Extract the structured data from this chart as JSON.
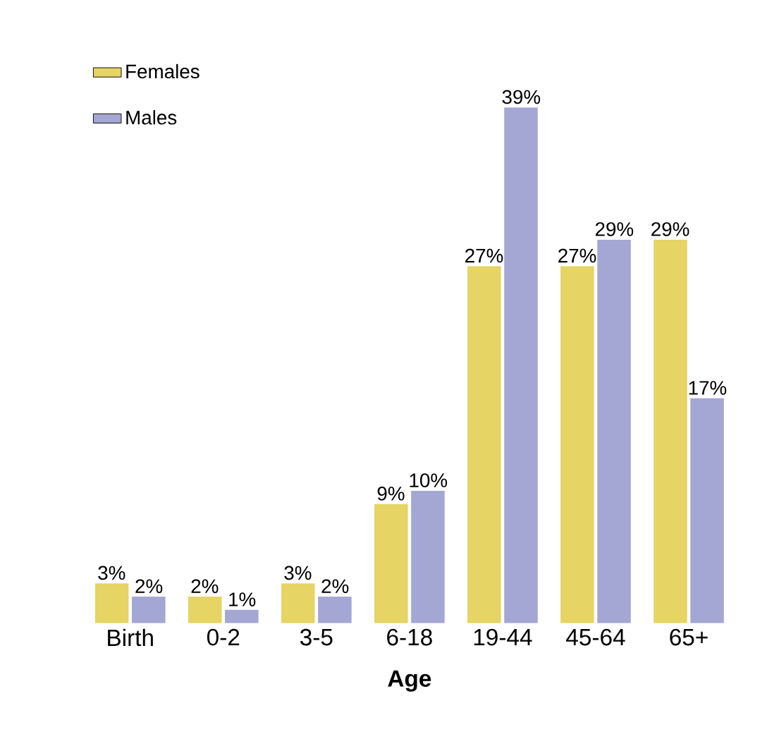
{
  "chart_data": {
    "type": "bar",
    "xlabel": "Age",
    "categories": [
      "Birth",
      "0-2",
      "3-5",
      "6-18",
      "19-44",
      "45-64",
      "65+"
    ],
    "series": [
      {
        "name": "Females",
        "color": "#e6d464",
        "values": [
          3,
          2,
          3,
          9,
          27,
          27,
          29
        ],
        "value_labels": [
          "3%",
          "2%",
          "3%",
          "9%",
          "27%",
          "27%",
          "29%"
        ]
      },
      {
        "name": "Males",
        "color": "#a4a6d4",
        "values": [
          2,
          1,
          2,
          10,
          39,
          29,
          17
        ],
        "value_labels": [
          "2%",
          "1%",
          "2%",
          "10%",
          "39%",
          "29%",
          "17%"
        ]
      }
    ],
    "legend": "top left"
  }
}
